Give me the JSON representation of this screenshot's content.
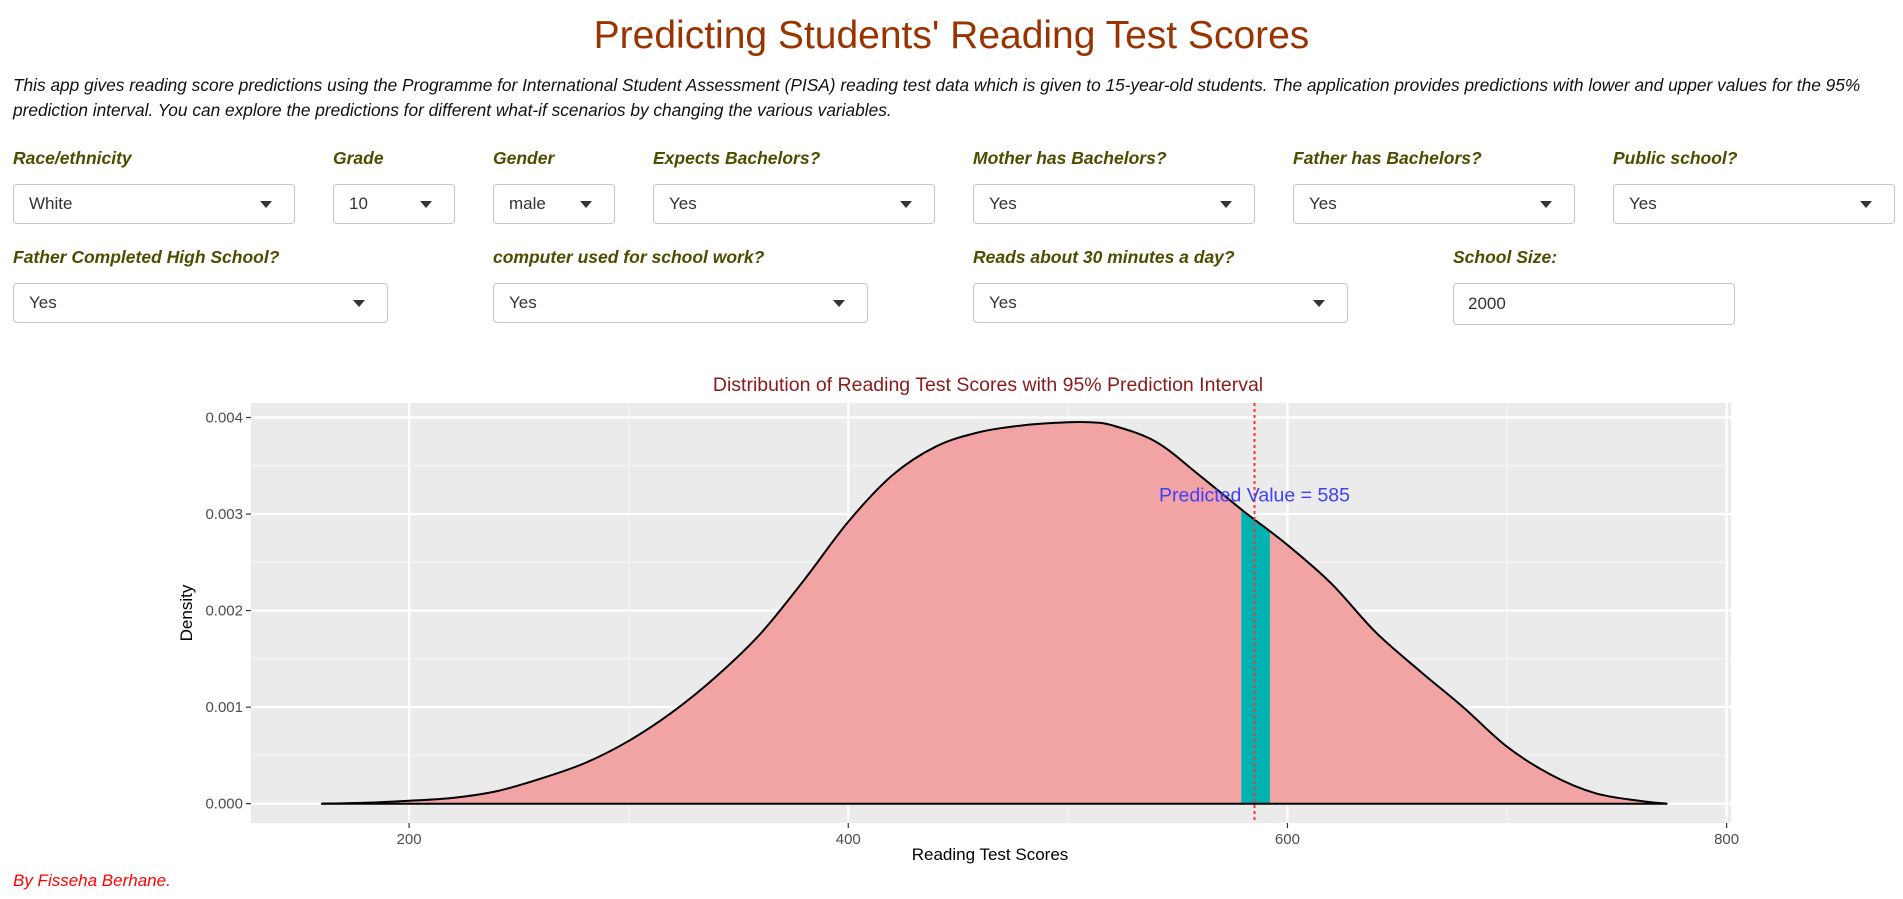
{
  "header": {
    "title": "Predicting Students' Reading Test Scores",
    "intro": "This app gives reading score predictions using the Programme for International Student Assessment (PISA) reading test data which is given to 15-year-old students. The application provides predictions with lower and upper values for the 95% prediction interval. You can explore the predictions for different what-if scenarios by changing the various variables."
  },
  "inputs": {
    "race": {
      "label": "Race/ethnicity",
      "value": "White"
    },
    "grade": {
      "label": "Grade",
      "value": "10"
    },
    "gender": {
      "label": "Gender",
      "value": "male"
    },
    "expects_bachelors": {
      "label": "Expects Bachelors?",
      "value": "Yes"
    },
    "mother_bachelors": {
      "label": "Mother has Bachelors?",
      "value": "Yes"
    },
    "father_bachelors": {
      "label": "Father has Bachelors?",
      "value": "Yes"
    },
    "public_school": {
      "label": "Public school?",
      "value": "Yes"
    },
    "father_hs": {
      "label": "Father Completed High School?",
      "value": "Yes"
    },
    "computer_school": {
      "label": "computer used for school work?",
      "value": "Yes"
    },
    "reads_30": {
      "label": "Reads about 30 minutes a day?",
      "value": "Yes"
    },
    "school_size": {
      "label": "School Size:",
      "value": "2000"
    }
  },
  "chart_data": {
    "type": "area",
    "title": "Distribution of Reading Test Scores with 95% Prediction Interval",
    "xlabel": "Reading Test Scores",
    "ylabel": "Density",
    "xlim": [
      128,
      802
    ],
    "ylim": [
      -0.0002,
      0.00415
    ],
    "x_ticks": [
      200,
      400,
      600,
      800
    ],
    "x_tick_labels": [
      "200",
      "400",
      "600",
      "800"
    ],
    "y_ticks": [
      0,
      0.001,
      0.002,
      0.003,
      0.004
    ],
    "y_tick_labels": [
      "0.000",
      "0.001",
      "0.002",
      "0.003",
      "0.004"
    ],
    "grid": true,
    "series": [
      {
        "x": [
          160,
          180,
          200,
          220,
          240,
          260,
          280,
          300,
          320,
          340,
          360,
          380,
          400,
          420,
          440,
          460,
          480,
          500,
          510,
          520,
          540,
          560,
          580,
          600,
          620,
          640,
          660,
          680,
          700,
          720,
          740,
          760,
          773
        ],
        "values": [
          0.0,
          1e-05,
          3e-05,
          6e-05,
          0.00013,
          0.00026,
          0.00042,
          0.00065,
          0.00095,
          0.00132,
          0.00176,
          0.00232,
          0.00292,
          0.0034,
          0.0037,
          0.00385,
          0.00392,
          0.00395,
          0.00395,
          0.00392,
          0.00375,
          0.0034,
          0.00303,
          0.00268,
          0.00228,
          0.00178,
          0.00138,
          0.001,
          0.00059,
          0.0003,
          0.00011,
          3e-05,
          0.0
        ]
      }
    ],
    "prediction_interval": [
      579,
      592
    ],
    "predicted_value": 585,
    "annotation": "Predicted Value = 585",
    "colors": {
      "density_fill": "#f2a3a3",
      "interval_fill": "#00b3b0",
      "predicted_line": "#ff3333",
      "annotation": "#4040ff",
      "title": "#8b1a1a",
      "panel": "#ebebeb"
    }
  },
  "footer": {
    "credit": "By Fisseha Berhane."
  }
}
